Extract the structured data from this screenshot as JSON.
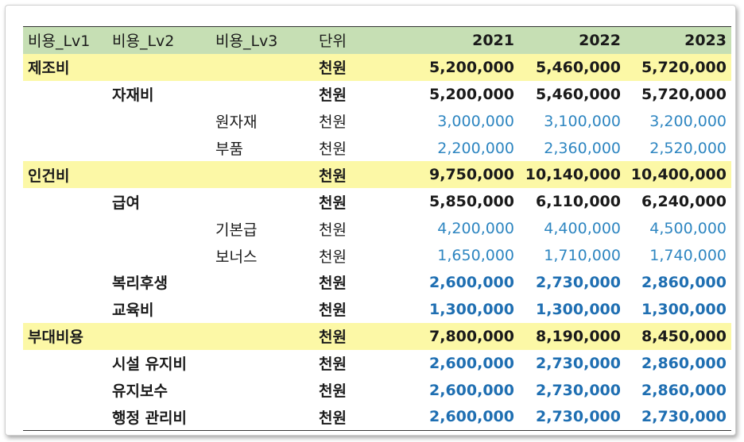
{
  "header": {
    "lv1": "비용_Lv1",
    "lv2": "비용_Lv2",
    "lv3": "비용_Lv3",
    "unit": "단위",
    "y1": "2021",
    "y2": "2022",
    "y3": "2023"
  },
  "rows": [
    {
      "lv1": "제조비",
      "lv2": "",
      "lv3": "",
      "unit": "천원",
      "y1": "5,200,000",
      "y2": "5,460,000",
      "y3": "5,720,000"
    },
    {
      "lv1": "",
      "lv2": "자재비",
      "lv3": "",
      "unit": "천원",
      "y1": "5,200,000",
      "y2": "5,460,000",
      "y3": "5,720,000"
    },
    {
      "lv1": "",
      "lv2": "",
      "lv3": "원자재",
      "unit": "천원",
      "y1": "3,000,000",
      "y2": "3,100,000",
      "y3": "3,200,000"
    },
    {
      "lv1": "",
      "lv2": "",
      "lv3": "부품",
      "unit": "천원",
      "y1": "2,200,000",
      "y2": "2,360,000",
      "y3": "2,520,000"
    },
    {
      "lv1": "인건비",
      "lv2": "",
      "lv3": "",
      "unit": "천원",
      "y1": "9,750,000",
      "y2": "10,140,000",
      "y3": "10,400,000"
    },
    {
      "lv1": "",
      "lv2": "급여",
      "lv3": "",
      "unit": "천원",
      "y1": "5,850,000",
      "y2": "6,110,000",
      "y3": "6,240,000"
    },
    {
      "lv1": "",
      "lv2": "",
      "lv3": "기본급",
      "unit": "천원",
      "y1": "4,200,000",
      "y2": "4,400,000",
      "y3": "4,500,000"
    },
    {
      "lv1": "",
      "lv2": "",
      "lv3": "보너스",
      "unit": "천원",
      "y1": "1,650,000",
      "y2": "1,710,000",
      "y3": "1,740,000"
    },
    {
      "lv1": "",
      "lv2": "복리후생",
      "lv3": "",
      "unit": "천원",
      "y1": "2,600,000",
      "y2": "2,730,000",
      "y3": "2,860,000"
    },
    {
      "lv1": "",
      "lv2": "교육비",
      "lv3": "",
      "unit": "천원",
      "y1": "1,300,000",
      "y2": "1,300,000",
      "y3": "1,300,000"
    },
    {
      "lv1": "부대비용",
      "lv2": "",
      "lv3": "",
      "unit": "천원",
      "y1": "7,800,000",
      "y2": "8,190,000",
      "y3": "8,450,000"
    },
    {
      "lv1": "",
      "lv2": "시설 유지비",
      "lv3": "",
      "unit": "천원",
      "y1": "2,600,000",
      "y2": "2,730,000",
      "y3": "2,860,000"
    },
    {
      "lv1": "",
      "lv2": "유지보수",
      "lv3": "",
      "unit": "천원",
      "y1": "2,600,000",
      "y2": "2,730,000",
      "y3": "2,860,000"
    },
    {
      "lv1": "",
      "lv2": "행정 관리비",
      "lv3": "",
      "unit": "천원",
      "y1": "2,600,000",
      "y2": "2,730,000",
      "y3": "2,730,000"
    }
  ],
  "colors": {
    "header_bg": "#c6dfb4",
    "lv1_bg": "#fcf8a6",
    "lv3_value": "#2e86c1",
    "lv2_blue_value": "#1f6fb2"
  }
}
